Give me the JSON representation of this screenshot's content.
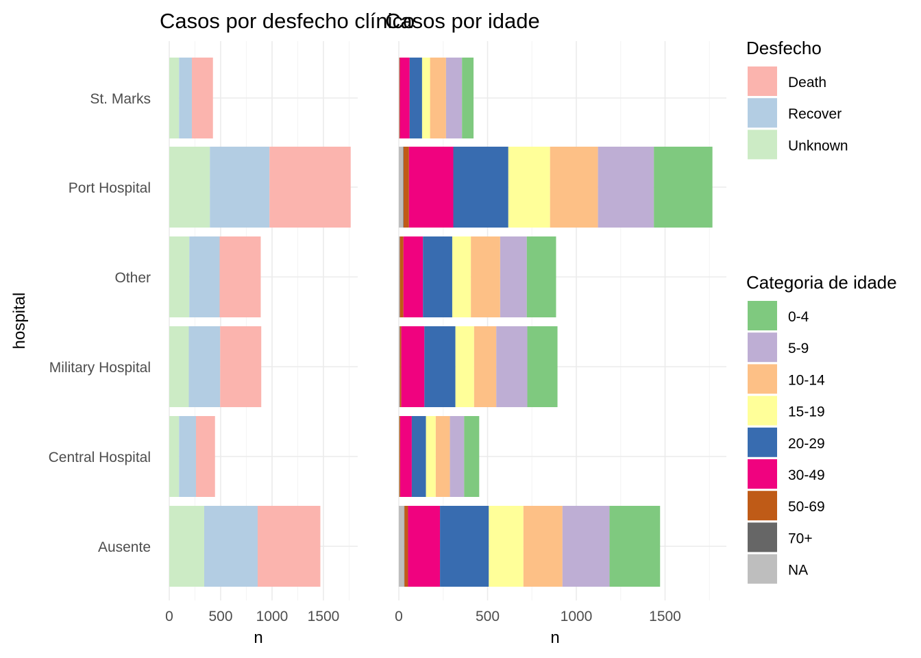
{
  "chart_data": [
    {
      "type": "bar",
      "orientation": "horizontal",
      "stacked": true,
      "title": "Casos por desfecho clínico",
      "xlabel": "n",
      "ylabel": "hospital",
      "categories": [
        "St. Marks",
        "Port Hospital",
        "Other",
        "Military Hospital",
        "Central Hospital",
        "Ausente"
      ],
      "xlim": [
        0,
        1835
      ],
      "xticks": [
        0,
        500,
        1000,
        1500
      ],
      "grid": true,
      "series": [
        {
          "name": "Unknown",
          "color": "#ccebc5",
          "values": [
            95,
            395,
            195,
            190,
            95,
            340
          ]
        },
        {
          "name": "Recover",
          "color": "#b3cde3",
          "values": [
            125,
            580,
            295,
            305,
            165,
            520
          ]
        },
        {
          "name": "Death",
          "color": "#fbb4ae",
          "values": [
            205,
            790,
            400,
            400,
            185,
            610
          ]
        }
      ]
    },
    {
      "type": "bar",
      "orientation": "horizontal",
      "stacked": true,
      "title": "Casos por idade",
      "xlabel": "n",
      "ylabel": "",
      "categories": [
        "St. Marks",
        "Port Hospital",
        "Other",
        "Military Hospital",
        "Central Hospital",
        "Ausente"
      ],
      "xlim": [
        0,
        1835
      ],
      "xticks": [
        0,
        500,
        1000,
        1500
      ],
      "grid": true,
      "series": [
        {
          "name": "NA",
          "color": "#bebebe",
          "values": [
            3,
            25,
            5,
            5,
            3,
            30
          ]
        },
        {
          "name": "70+",
          "color": "#666666",
          "values": [
            0,
            2,
            1,
            1,
            0,
            2
          ]
        },
        {
          "name": "50-69",
          "color": "#bf5b17",
          "values": [
            3,
            30,
            20,
            8,
            5,
            20
          ]
        },
        {
          "name": "30-49",
          "color": "#f0027f",
          "values": [
            55,
            250,
            110,
            130,
            65,
            180
          ]
        },
        {
          "name": "20-29",
          "color": "#386cb0",
          "values": [
            70,
            310,
            165,
            175,
            80,
            275
          ]
        },
        {
          "name": "15-19",
          "color": "#ffff99",
          "values": [
            45,
            235,
            105,
            105,
            55,
            195
          ]
        },
        {
          "name": "10-14",
          "color": "#fdc086",
          "values": [
            90,
            270,
            165,
            125,
            80,
            220
          ]
        },
        {
          "name": "5-9",
          "color": "#beaed4",
          "values": [
            90,
            315,
            150,
            175,
            80,
            265
          ]
        },
        {
          "name": "0-4",
          "color": "#7fc97f",
          "values": [
            65,
            330,
            165,
            170,
            85,
            285
          ]
        }
      ]
    }
  ],
  "legend_outcome": {
    "title": "Desfecho",
    "items": [
      {
        "label": "Death",
        "color": "#fbb4ae"
      },
      {
        "label": "Recover",
        "color": "#b3cde3"
      },
      {
        "label": "Unknown",
        "color": "#ccebc5"
      }
    ]
  },
  "legend_age": {
    "title": "Categoria de idade",
    "items": [
      {
        "label": "0-4",
        "color": "#7fc97f"
      },
      {
        "label": "5-9",
        "color": "#beaed4"
      },
      {
        "label": "10-14",
        "color": "#fdc086"
      },
      {
        "label": "15-19",
        "color": "#ffff99"
      },
      {
        "label": "20-29",
        "color": "#386cb0"
      },
      {
        "label": "30-49",
        "color": "#f0027f"
      },
      {
        "label": "50-69",
        "color": "#bf5b17"
      },
      {
        "label": "70+",
        "color": "#666666"
      },
      {
        "label": "NA",
        "color": "#bebebe"
      }
    ]
  }
}
